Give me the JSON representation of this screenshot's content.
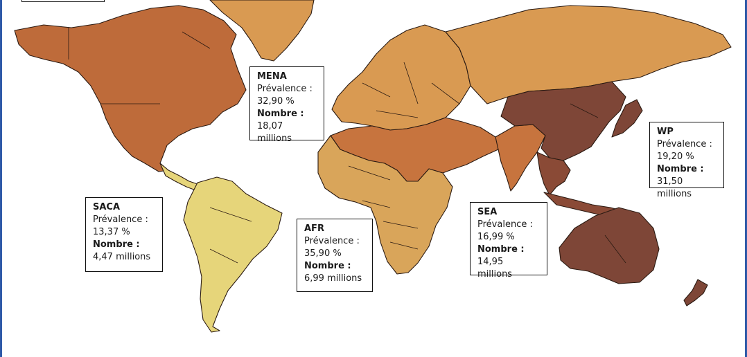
{
  "colors": {
    "background": "#ffffff",
    "frame": "#2f5aa8",
    "saca": "#e6d57a",
    "afr": "#d9a55a",
    "europe": "#d99a52",
    "mena": "#c7743e",
    "north_america": "#be6b3a",
    "sea": "#8a4a36",
    "wp": "#7e4637"
  },
  "regions": [
    {
      "code": "MENA",
      "prevalence_label": "Prévalence :",
      "prevalence": "32,90 %",
      "count_label": "Nombre :",
      "count": "18,07 millions"
    },
    {
      "code": "WP",
      "prevalence_label": "Prévalence :",
      "prevalence": "19,20 %",
      "count_label": "Nombre :",
      "count": "31,50 millions"
    },
    {
      "code": "SACA",
      "prevalence_label": "Prévalence :",
      "prevalence": "13,37 %",
      "count_label": "Nombre :",
      "count": "4,47 millions"
    },
    {
      "code": "AFR",
      "prevalence_label": "Prévalence :",
      "prevalence": "35,90 %",
      "count_label": "Nombre :",
      "count": "6,99 millions"
    },
    {
      "code": "SEA",
      "prevalence_label": "Prévalence :",
      "prevalence": "16,99 %",
      "count_label": "Nombre :",
      "count": "14,95 millions"
    }
  ]
}
